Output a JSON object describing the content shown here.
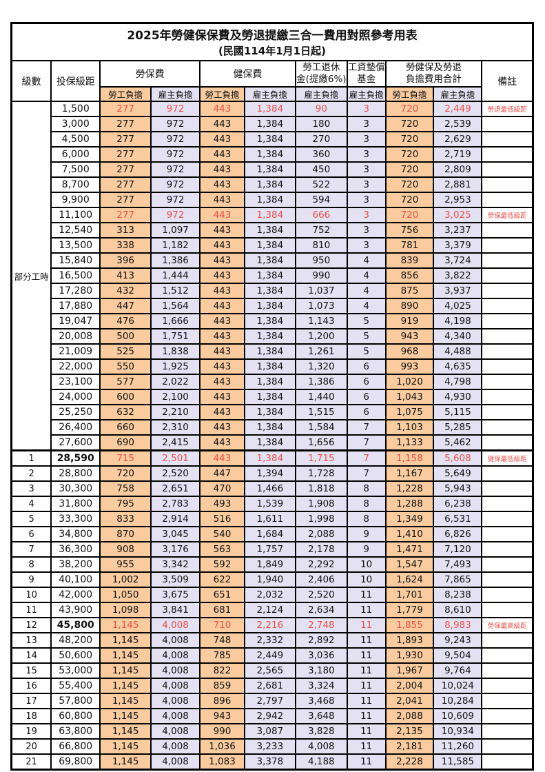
{
  "title": "2025年勞健保保費及勞退提繳三合一費用對照參考用表",
  "subtitle": "(民國114年1月1日起)",
  "colors": {
    "employee_bg": "#f9cb9f",
    "employer_bg": "#e4e2f2",
    "highlight_text": "#e8504b",
    "border": "#000000"
  },
  "headers": {
    "level": "級數",
    "bracket": "投保級距",
    "labor_ins": "勞保費",
    "health_ins": "健保費",
    "pension_line1": "勞工退休",
    "pension_line2": "金(提繳6%)",
    "arrears_line1": "工資墊償",
    "arrears_line2": "基金",
    "total_line1": "勞健保及勞退",
    "total_line2": "負擔費用合計",
    "remark": "備註",
    "employee": "勞工負擔",
    "employer": "雇主負擔"
  },
  "part_time_label": "部分工時",
  "part_time_row_count": 23,
  "rows": [
    {
      "level": "",
      "bracket": "1,500",
      "v": [
        "277",
        "972",
        "443",
        "1,384",
        "90",
        "3",
        "720",
        "2,449"
      ],
      "note": "勞退最低級距",
      "red": true
    },
    {
      "level": "",
      "bracket": "3,000",
      "v": [
        "277",
        "972",
        "443",
        "1,384",
        "180",
        "3",
        "720",
        "2,539"
      ],
      "note": ""
    },
    {
      "level": "",
      "bracket": "4,500",
      "v": [
        "277",
        "972",
        "443",
        "1,384",
        "270",
        "3",
        "720",
        "2,629"
      ],
      "note": ""
    },
    {
      "level": "",
      "bracket": "6,000",
      "v": [
        "277",
        "972",
        "443",
        "1,384",
        "360",
        "3",
        "720",
        "2,719"
      ],
      "note": ""
    },
    {
      "level": "",
      "bracket": "7,500",
      "v": [
        "277",
        "972",
        "443",
        "1,384",
        "450",
        "3",
        "720",
        "2,809"
      ],
      "note": ""
    },
    {
      "level": "",
      "bracket": "8,700",
      "v": [
        "277",
        "972",
        "443",
        "1,384",
        "522",
        "3",
        "720",
        "2,881"
      ],
      "note": ""
    },
    {
      "level": "",
      "bracket": "9,900",
      "v": [
        "277",
        "972",
        "443",
        "1,384",
        "594",
        "3",
        "720",
        "2,953"
      ],
      "note": ""
    },
    {
      "level": "",
      "bracket": "11,100",
      "v": [
        "277",
        "972",
        "443",
        "1,384",
        "666",
        "3",
        "720",
        "3,025"
      ],
      "note": "勞保最低級距",
      "red": true
    },
    {
      "level": "",
      "bracket": "12,540",
      "v": [
        "313",
        "1,097",
        "443",
        "1,384",
        "752",
        "3",
        "756",
        "3,237"
      ],
      "note": ""
    },
    {
      "level": "",
      "bracket": "13,500",
      "v": [
        "338",
        "1,182",
        "443",
        "1,384",
        "810",
        "3",
        "781",
        "3,379"
      ],
      "note": ""
    },
    {
      "level": "",
      "bracket": "15,840",
      "v": [
        "396",
        "1,386",
        "443",
        "1,384",
        "950",
        "4",
        "839",
        "3,724"
      ],
      "note": ""
    },
    {
      "level": "",
      "bracket": "16,500",
      "v": [
        "413",
        "1,444",
        "443",
        "1,384",
        "990",
        "4",
        "856",
        "3,822"
      ],
      "note": ""
    },
    {
      "level": "",
      "bracket": "17,280",
      "v": [
        "432",
        "1,512",
        "443",
        "1,384",
        "1,037",
        "4",
        "875",
        "3,937"
      ],
      "note": ""
    },
    {
      "level": "",
      "bracket": "17,880",
      "v": [
        "447",
        "1,564",
        "443",
        "1,384",
        "1,073",
        "4",
        "890",
        "4,025"
      ],
      "note": ""
    },
    {
      "level": "",
      "bracket": "19,047",
      "v": [
        "476",
        "1,666",
        "443",
        "1,384",
        "1,143",
        "5",
        "919",
        "4,198"
      ],
      "note": ""
    },
    {
      "level": "",
      "bracket": "20,008",
      "v": [
        "500",
        "1,751",
        "443",
        "1,384",
        "1,200",
        "5",
        "943",
        "4,340"
      ],
      "note": ""
    },
    {
      "level": "",
      "bracket": "21,009",
      "v": [
        "525",
        "1,838",
        "443",
        "1,384",
        "1,261",
        "5",
        "968",
        "4,488"
      ],
      "note": ""
    },
    {
      "level": "",
      "bracket": "22,000",
      "v": [
        "550",
        "1,925",
        "443",
        "1,384",
        "1,320",
        "6",
        "993",
        "4,635"
      ],
      "note": ""
    },
    {
      "level": "",
      "bracket": "23,100",
      "v": [
        "577",
        "2,022",
        "443",
        "1,384",
        "1,386",
        "6",
        "1,020",
        "4,798"
      ],
      "note": ""
    },
    {
      "level": "",
      "bracket": "24,000",
      "v": [
        "600",
        "2,100",
        "443",
        "1,384",
        "1,440",
        "6",
        "1,043",
        "4,930"
      ],
      "note": ""
    },
    {
      "level": "",
      "bracket": "25,250",
      "v": [
        "632",
        "2,210",
        "443",
        "1,384",
        "1,515",
        "6",
        "1,075",
        "5,115"
      ],
      "note": ""
    },
    {
      "level": "",
      "bracket": "26,400",
      "v": [
        "660",
        "2,310",
        "443",
        "1,384",
        "1,584",
        "7",
        "1,103",
        "5,285"
      ],
      "note": ""
    },
    {
      "level": "",
      "bracket": "27,600",
      "v": [
        "690",
        "2,415",
        "443",
        "1,384",
        "1,656",
        "7",
        "1,133",
        "5,462"
      ],
      "note": ""
    },
    {
      "level": "1",
      "bracket": "28,590",
      "v": [
        "715",
        "2,501",
        "443",
        "1,384",
        "1,715",
        "7",
        "1,158",
        "5,608"
      ],
      "note": "健保最低級距",
      "red": true,
      "bold": true,
      "sep": true
    },
    {
      "level": "2",
      "bracket": "28,800",
      "v": [
        "720",
        "2,520",
        "447",
        "1,394",
        "1,728",
        "7",
        "1,167",
        "5,649"
      ],
      "note": ""
    },
    {
      "level": "3",
      "bracket": "30,300",
      "v": [
        "758",
        "2,651",
        "470",
        "1,466",
        "1,818",
        "8",
        "1,228",
        "5,943"
      ],
      "note": ""
    },
    {
      "level": "4",
      "bracket": "31,800",
      "v": [
        "795",
        "2,783",
        "493",
        "1,539",
        "1,908",
        "8",
        "1,288",
        "6,238"
      ],
      "note": ""
    },
    {
      "level": "5",
      "bracket": "33,300",
      "v": [
        "833",
        "2,914",
        "516",
        "1,611",
        "1,998",
        "8",
        "1,349",
        "6,531"
      ],
      "note": ""
    },
    {
      "level": "6",
      "bracket": "34,800",
      "v": [
        "870",
        "3,045",
        "540",
        "1,684",
        "2,088",
        "9",
        "1,410",
        "6,826"
      ],
      "note": ""
    },
    {
      "level": "7",
      "bracket": "36,300",
      "v": [
        "908",
        "3,176",
        "563",
        "1,757",
        "2,178",
        "9",
        "1,471",
        "7,120"
      ],
      "note": ""
    },
    {
      "level": "8",
      "bracket": "38,200",
      "v": [
        "955",
        "3,342",
        "592",
        "1,849",
        "2,292",
        "10",
        "1,547",
        "7,493"
      ],
      "note": ""
    },
    {
      "level": "9",
      "bracket": "40,100",
      "v": [
        "1,002",
        "3,509",
        "622",
        "1,940",
        "2,406",
        "10",
        "1,624",
        "7,865"
      ],
      "note": ""
    },
    {
      "level": "10",
      "bracket": "42,000",
      "v": [
        "1,050",
        "3,675",
        "651",
        "2,032",
        "2,520",
        "11",
        "1,701",
        "8,238"
      ],
      "note": ""
    },
    {
      "level": "11",
      "bracket": "43,900",
      "v": [
        "1,098",
        "3,841",
        "681",
        "2,124",
        "2,634",
        "11",
        "1,779",
        "8,610"
      ],
      "note": ""
    },
    {
      "level": "12",
      "bracket": "45,800",
      "v": [
        "1,145",
        "4,008",
        "710",
        "2,216",
        "2,748",
        "11",
        "1,855",
        "8,983"
      ],
      "note": "勞保最高級距",
      "red": true,
      "bold": true
    },
    {
      "level": "13",
      "bracket": "48,200",
      "v": [
        "1,145",
        "4,008",
        "748",
        "2,332",
        "2,892",
        "11",
        "1,893",
        "9,243"
      ],
      "note": ""
    },
    {
      "level": "14",
      "bracket": "50,600",
      "v": [
        "1,145",
        "4,008",
        "785",
        "2,449",
        "3,036",
        "11",
        "1,930",
        "9,504"
      ],
      "note": ""
    },
    {
      "level": "15",
      "bracket": "53,000",
      "v": [
        "1,145",
        "4,008",
        "822",
        "2,565",
        "3,180",
        "11",
        "1,967",
        "9,764"
      ],
      "note": ""
    },
    {
      "level": "16",
      "bracket": "55,400",
      "v": [
        "1,145",
        "4,008",
        "859",
        "2,681",
        "3,324",
        "11",
        "2,004",
        "10,024"
      ],
      "note": ""
    },
    {
      "level": "17",
      "bracket": "57,800",
      "v": [
        "1,145",
        "4,008",
        "896",
        "2,797",
        "3,468",
        "11",
        "2,041",
        "10,284"
      ],
      "note": ""
    },
    {
      "level": "18",
      "bracket": "60,800",
      "v": [
        "1,145",
        "4,008",
        "943",
        "2,942",
        "3,648",
        "11",
        "2,088",
        "10,609"
      ],
      "note": ""
    },
    {
      "level": "19",
      "bracket": "63,800",
      "v": [
        "1,145",
        "4,008",
        "990",
        "3,087",
        "3,828",
        "11",
        "2,135",
        "10,934"
      ],
      "note": ""
    },
    {
      "level": "20",
      "bracket": "66,800",
      "v": [
        "1,145",
        "4,008",
        "1,036",
        "3,233",
        "4,008",
        "11",
        "2,181",
        "11,260"
      ],
      "note": ""
    },
    {
      "level": "21",
      "bracket": "69,800",
      "v": [
        "1,145",
        "4,008",
        "1,083",
        "3,378",
        "4,188",
        "11",
        "2,228",
        "11,585"
      ],
      "note": ""
    }
  ]
}
